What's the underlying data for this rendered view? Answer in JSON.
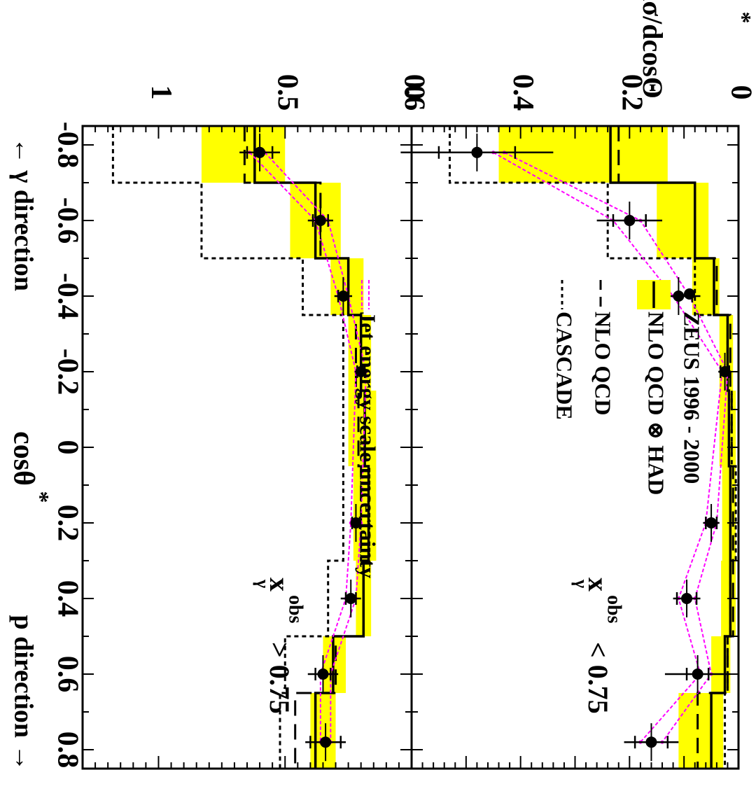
{
  "figure": {
    "y_axis_title": "dσ/dcosΘ",
    "y_axis_title_sup": "*",
    "x_axis_title": "cosθ",
    "x_axis_title_sup": "*",
    "x_axis_left_note": "← γ direction",
    "x_axis_right_note": "p direction →"
  },
  "legend": {
    "zeus": "ZEUS 1996 - 2000",
    "nlo_had": "NLO QCD ⊗ HAD",
    "nlo": "NLO QCD",
    "cascade": "CASCADE",
    "jes": "Jet energy scale uncertainty"
  },
  "colors": {
    "band": "#ffff00",
    "jes": "#ff00ff",
    "data": "#000000"
  },
  "chart_data": [
    {
      "type": "line",
      "panel": "top",
      "cut_label": {
        "var": "x",
        "sub": "γ",
        "sup": "obs",
        "rel": "<",
        "value": "0.75"
      },
      "ylim": [
        0,
        0.6
      ],
      "yticks": [
        0,
        0.2,
        0.4,
        0.6
      ],
      "xlim": [
        -0.85,
        0.85
      ],
      "xticks": [
        -0.8,
        -0.6,
        -0.4,
        -0.2,
        0,
        0.2,
        0.4,
        0.6,
        0.8
      ],
      "bin_edges": [
        -0.85,
        -0.7,
        -0.5,
        -0.35,
        -0.15,
        0.05,
        0.3,
        0.5,
        0.65,
        0.85
      ],
      "data": {
        "x": [
          -0.78,
          -0.6,
          -0.4,
          -0.2,
          0.2,
          0.4,
          0.6,
          0.78
        ],
        "y": [
          0.48,
          0.2,
          0.11,
          0.025,
          0.05,
          0.095,
          0.075,
          0.16
        ],
        "err_stat": [
          0.07,
          0.03,
          0.025,
          0.008,
          0.01,
          0.018,
          0.02,
          0.03
        ],
        "err_tot": [
          0.14,
          0.06,
          0.04,
          0.012,
          0.015,
          0.025,
          0.06,
          0.05
        ]
      },
      "nlo_had": [
        0.235,
        0.08,
        0.045,
        0.02,
        0.015,
        0.015,
        0.025,
        0.05
      ],
      "nlo_had_band": [
        [
          0.13,
          0.44
        ],
        [
          0.055,
          0.15
        ],
        [
          0.035,
          0.085
        ],
        [
          0.01,
          0.035
        ],
        [
          0.005,
          0.03
        ],
        [
          0.005,
          0.032
        ],
        [
          0.015,
          0.05
        ],
        [
          0.028,
          0.11
        ]
      ],
      "nlo": [
        0.22,
        0.08,
        0.04,
        0.015,
        0.01,
        0.01,
        0.02,
        0.075
      ],
      "cascade": [
        0.53,
        0.24,
        0.08,
        0.02,
        0.005,
        0.015,
        0.02,
        0.025
      ],
      "jes": {
        "upper": [
          0.45,
          0.23,
          0.12,
          0.03,
          0.06,
          0.11,
          0.07,
          0.18
        ],
        "lower": [
          0.43,
          0.18,
          0.09,
          0.02,
          0.04,
          0.08,
          0.05,
          0.14
        ]
      }
    },
    {
      "type": "line",
      "panel": "bottom",
      "cut_label": {
        "var": "x",
        "sub": "γ",
        "sup": "obs",
        "rel": ">",
        "value": "0.75"
      },
      "ylim": [
        0,
        1.3
      ],
      "yticks": [
        0,
        0.5,
        1
      ],
      "xlim": [
        -0.85,
        0.85
      ],
      "xticks": [
        -0.8,
        -0.6,
        -0.4,
        -0.2,
        0,
        0.2,
        0.4,
        0.6,
        0.8
      ],
      "bin_edges": [
        -0.85,
        -0.7,
        -0.5,
        -0.35,
        -0.15,
        0.05,
        0.3,
        0.5,
        0.65,
        0.85
      ],
      "data": {
        "x": [
          -0.78,
          -0.6,
          -0.4,
          -0.2,
          0.2,
          0.4,
          0.6,
          0.78
        ],
        "y": [
          0.6,
          0.36,
          0.27,
          0.2,
          0.22,
          0.24,
          0.35,
          0.34
        ],
        "err_stat": [
          0.05,
          0.03,
          0.02,
          0.015,
          0.015,
          0.02,
          0.03,
          0.06
        ],
        "err_tot": [
          0.08,
          0.05,
          0.035,
          0.025,
          0.02,
          0.04,
          0.06,
          0.08
        ]
      },
      "nlo_had": [
        0.62,
        0.38,
        0.25,
        0.2,
        0.17,
        0.19,
        0.31,
        0.38
      ],
      "nlo_had_band": [
        [
          0.5,
          0.83
        ],
        [
          0.28,
          0.48
        ],
        [
          0.19,
          0.32
        ],
        [
          0.16,
          0.25
        ],
        [
          0.14,
          0.23
        ],
        [
          0.16,
          0.22
        ],
        [
          0.26,
          0.35
        ],
        [
          0.3,
          0.4
        ]
      ],
      "nlo": [
        0.66,
        0.36,
        0.25,
        0.22,
        0.2,
        0.19,
        0.3,
        0.46
      ],
      "cascade": [
        1.18,
        0.83,
        0.43,
        0.27,
        0.27,
        0.33,
        0.5,
        0.52
      ],
      "jes": {
        "upper": [
          0.64,
          0.38,
          0.29,
          0.22,
          0.24,
          0.26,
          0.36,
          0.36
        ],
        "lower": [
          0.58,
          0.33,
          0.25,
          0.18,
          0.2,
          0.22,
          0.32,
          0.32
        ]
      }
    }
  ]
}
